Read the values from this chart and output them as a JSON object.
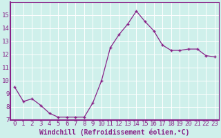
{
  "x": [
    0,
    1,
    2,
    3,
    4,
    5,
    6,
    7,
    8,
    9,
    10,
    11,
    12,
    13,
    14,
    15,
    16,
    17,
    18,
    19,
    20,
    21,
    22,
    23
  ],
  "y": [
    9.5,
    8.4,
    8.6,
    8.1,
    7.5,
    7.2,
    7.2,
    7.2,
    7.2,
    8.3,
    10.0,
    12.5,
    13.5,
    14.3,
    15.3,
    14.5,
    13.8,
    12.7,
    12.3,
    12.3,
    12.4,
    12.4,
    11.9,
    11.8
  ],
  "line_color": "#882288",
  "marker": "+",
  "marker_color": "#882288",
  "xlabel": "Windchill (Refroidissement éolien,°C)",
  "ylim": [
    7,
    16
  ],
  "xlim_left": -0.5,
  "xlim_right": 23.5,
  "yticks": [
    7,
    8,
    9,
    10,
    11,
    12,
    13,
    14,
    15
  ],
  "xticks": [
    0,
    1,
    2,
    3,
    4,
    5,
    6,
    7,
    8,
    9,
    10,
    11,
    12,
    13,
    14,
    15,
    16,
    17,
    18,
    19,
    20,
    21,
    22,
    23
  ],
  "bg_color": "#cff0eb",
  "grid_color": "#ffffff",
  "font_color": "#882288",
  "font_size": 6.5,
  "xlabel_fontsize": 7,
  "linewidth": 0.9,
  "markersize": 3.5,
  "spine_color": "#882288"
}
